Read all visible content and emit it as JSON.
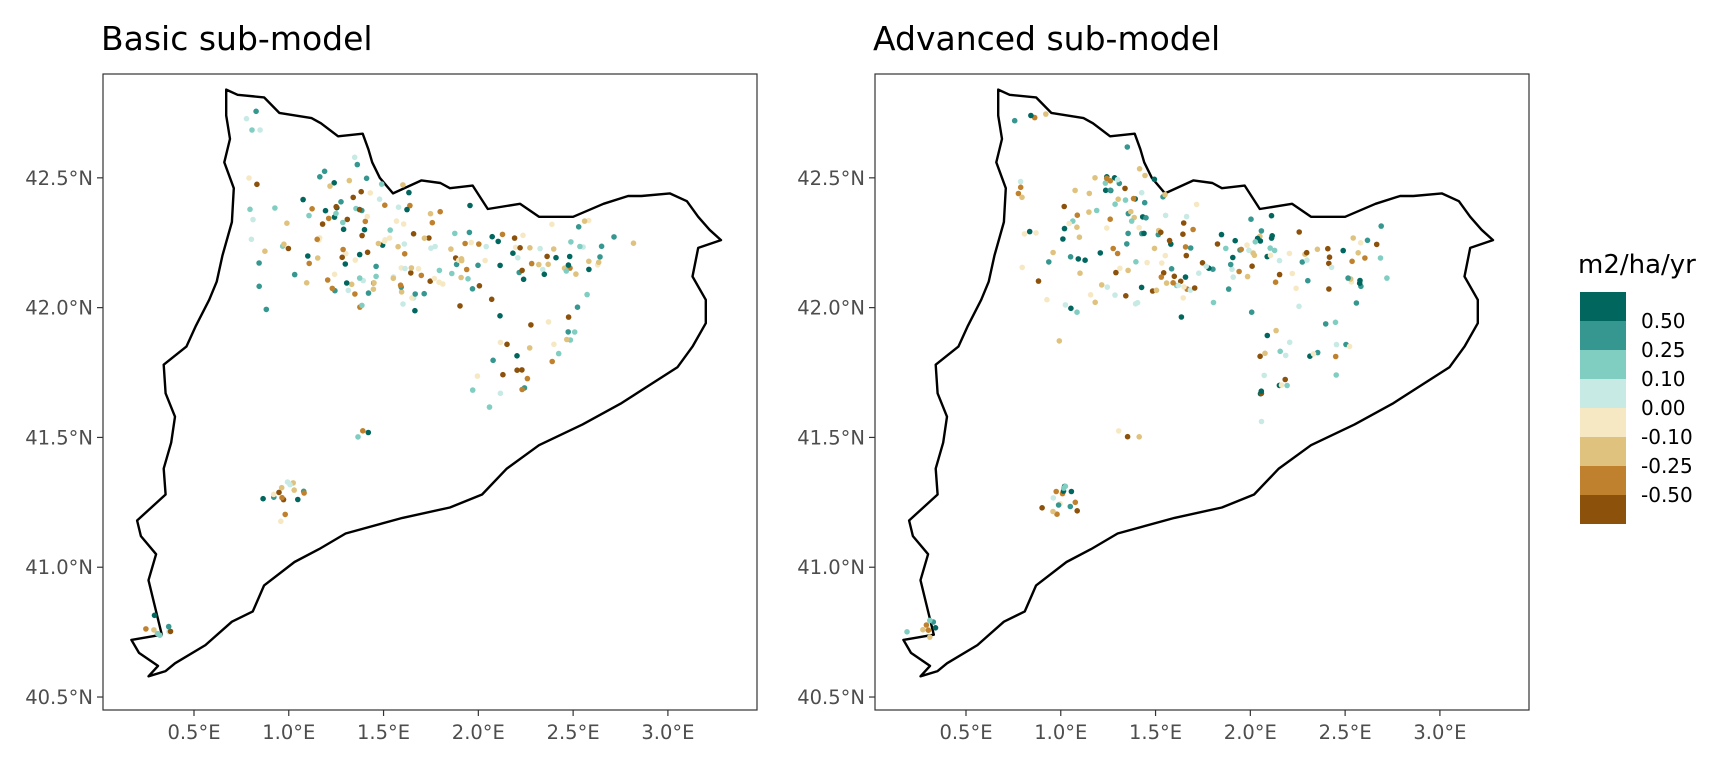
{
  "panels": [
    {
      "title": "Basic sub-model",
      "seed": 17
    },
    {
      "title": "Advanced sub-model",
      "seed": 91
    }
  ],
  "axes": {
    "lon_ticks": [
      "0.5°E",
      "1.0°E",
      "1.5°E",
      "2.0°E",
      "2.5°E",
      "3.0°E"
    ],
    "lat_ticks": [
      "40.5°N",
      "41.0°N",
      "41.5°N",
      "42.0°N",
      "42.5°N"
    ],
    "lon_values": [
      0.5,
      1.0,
      1.5,
      2.0,
      2.5,
      3.0
    ],
    "lat_values": [
      40.5,
      41.0,
      41.5,
      42.0,
      42.5
    ],
    "lon_range": [
      0.02,
      3.47
    ],
    "lat_range": [
      40.45,
      42.9
    ]
  },
  "legend": {
    "title": "m2/ha/yr",
    "labels": [
      "0.50",
      "0.25",
      "0.10",
      "0.00",
      "-0.10",
      "-0.25",
      "-0.50"
    ],
    "colors": [
      "#01665e",
      "#35978f",
      "#80cdc1",
      "#c7eae5",
      "#f6e8c3",
      "#dfc27d",
      "#bf812d",
      "#8c510a"
    ]
  },
  "chart_data": {
    "type": "scatter",
    "map_region_outline": [
      [
        0.67,
        42.84
      ],
      [
        0.73,
        42.82
      ],
      [
        0.87,
        42.81
      ],
      [
        0.95,
        42.75
      ],
      [
        1.12,
        42.73
      ],
      [
        1.17,
        42.71
      ],
      [
        1.26,
        42.66
      ],
      [
        1.39,
        42.67
      ],
      [
        1.42,
        42.61
      ],
      [
        1.44,
        42.56
      ],
      [
        1.48,
        42.5
      ],
      [
        1.55,
        42.44
      ],
      [
        1.7,
        42.49
      ],
      [
        1.8,
        42.48
      ],
      [
        1.85,
        42.46
      ],
      [
        1.97,
        42.47
      ],
      [
        2.05,
        42.38
      ],
      [
        2.22,
        42.4
      ],
      [
        2.32,
        42.35
      ],
      [
        2.5,
        42.35
      ],
      [
        2.66,
        42.4
      ],
      [
        2.79,
        42.43
      ],
      [
        2.86,
        42.43
      ],
      [
        3.01,
        42.44
      ],
      [
        3.1,
        42.41
      ],
      [
        3.16,
        42.35
      ],
      [
        3.22,
        42.3
      ],
      [
        3.28,
        42.26
      ],
      [
        3.16,
        42.23
      ],
      [
        3.13,
        42.12
      ],
      [
        3.2,
        42.03
      ],
      [
        3.2,
        41.94
      ],
      [
        3.13,
        41.85
      ],
      [
        3.05,
        41.77
      ],
      [
        2.9,
        41.7
      ],
      [
        2.75,
        41.63
      ],
      [
        2.55,
        41.55
      ],
      [
        2.32,
        41.47
      ],
      [
        2.15,
        41.38
      ],
      [
        2.02,
        41.28
      ],
      [
        1.85,
        41.23
      ],
      [
        1.6,
        41.19
      ],
      [
        1.3,
        41.13
      ],
      [
        1.16,
        41.07
      ],
      [
        1.03,
        41.02
      ],
      [
        0.87,
        40.93
      ],
      [
        0.81,
        40.83
      ],
      [
        0.7,
        40.79
      ],
      [
        0.56,
        40.7
      ],
      [
        0.4,
        40.63
      ],
      [
        0.35,
        40.6
      ],
      [
        0.26,
        40.58
      ],
      [
        0.31,
        40.62
      ],
      [
        0.21,
        40.67
      ],
      [
        0.17,
        40.72
      ],
      [
        0.33,
        40.74
      ],
      [
        0.29,
        40.86
      ],
      [
        0.26,
        40.95
      ],
      [
        0.3,
        41.05
      ],
      [
        0.22,
        41.12
      ],
      [
        0.2,
        41.18
      ],
      [
        0.35,
        41.28
      ],
      [
        0.34,
        41.38
      ],
      [
        0.38,
        41.48
      ],
      [
        0.4,
        41.58
      ],
      [
        0.35,
        41.67
      ],
      [
        0.34,
        41.78
      ],
      [
        0.46,
        41.85
      ],
      [
        0.51,
        41.93
      ],
      [
        0.58,
        42.03
      ],
      [
        0.62,
        42.1
      ],
      [
        0.65,
        42.2
      ],
      [
        0.7,
        42.33
      ],
      [
        0.71,
        42.46
      ],
      [
        0.66,
        42.56
      ],
      [
        0.69,
        42.65
      ],
      [
        0.67,
        42.74
      ],
      [
        0.67,
        42.84
      ]
    ],
    "point_clusters": [
      {
        "lon": 0.82,
        "lat": 42.73,
        "spread": [
          0.04,
          0.03
        ],
        "n": 4
      },
      {
        "lon": 0.8,
        "lat": 42.44,
        "spread": [
          0.02,
          0.05
        ],
        "n": 4
      },
      {
        "lon": 0.97,
        "lat": 42.28,
        "spread": [
          0.12,
          0.05
        ],
        "n": 10
      },
      {
        "lon": 1.32,
        "lat": 42.4,
        "spread": [
          0.12,
          0.08
        ],
        "n": 40
      },
      {
        "lon": 1.22,
        "lat": 42.12,
        "spread": [
          0.18,
          0.08
        ],
        "n": 26
      },
      {
        "lon": 1.55,
        "lat": 42.26,
        "spread": [
          0.16,
          0.08
        ],
        "n": 28
      },
      {
        "lon": 1.7,
        "lat": 42.1,
        "spread": [
          0.16,
          0.06
        ],
        "n": 26
      },
      {
        "lon": 2.1,
        "lat": 42.2,
        "spread": [
          0.2,
          0.07
        ],
        "n": 40
      },
      {
        "lon": 2.15,
        "lat": 41.82,
        "spread": [
          0.08,
          0.1
        ],
        "n": 14
      },
      {
        "lon": 2.45,
        "lat": 41.9,
        "spread": [
          0.08,
          0.08
        ],
        "n": 12
      },
      {
        "lon": 2.4,
        "lat": 42.18,
        "spread": [
          0.12,
          0.04
        ],
        "n": 8
      },
      {
        "lon": 2.62,
        "lat": 42.18,
        "spread": [
          0.07,
          0.08
        ],
        "n": 12
      },
      {
        "lon": 1.0,
        "lat": 41.27,
        "spread": [
          0.06,
          0.04
        ],
        "n": 16
      },
      {
        "lon": 0.3,
        "lat": 40.77,
        "spread": [
          0.06,
          0.03
        ],
        "n": 8
      },
      {
        "lon": 1.35,
        "lat": 41.5,
        "spread": [
          0.04,
          0.03
        ],
        "n": 3
      },
      {
        "lon": 2.05,
        "lat": 41.65,
        "spread": [
          0.05,
          0.04
        ],
        "n": 3
      }
    ]
  }
}
